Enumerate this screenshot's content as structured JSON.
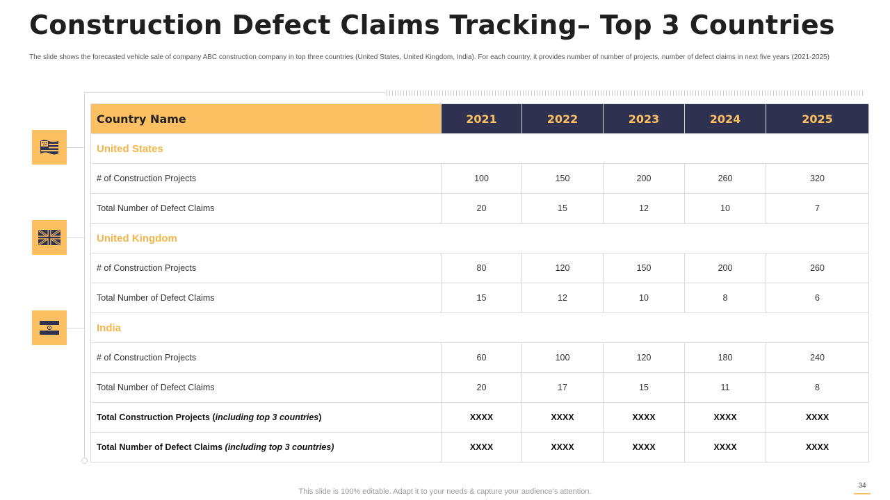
{
  "title": "Construction Defect Claims Tracking– Top 3 Countries",
  "subtitle": "The slide shows the forecasted vehicle sale of company ABC construction company in top three countries (United States, United Kingdom, India).  For each country, it provides number of number of projects, number of defect claims in next five years (2021-2025)",
  "colors": {
    "accent": "#fcc063",
    "header_dark": "#2e3150",
    "section_text": "#f3b548"
  },
  "table": {
    "country_header": "Country Name",
    "years": [
      "2021",
      "2022",
      "2023",
      "2024",
      "2025"
    ],
    "countries": [
      {
        "name": "United States",
        "flag_icon": "us-flag-icon",
        "projects_label": "# of Construction Projects",
        "projects": [
          "100",
          "150",
          "200",
          "260",
          "320"
        ],
        "claims_label": "Total Number  of Defect Claims",
        "claims": [
          "20",
          "15",
          "12",
          "10",
          "7"
        ]
      },
      {
        "name": "United Kingdom",
        "flag_icon": "uk-flag-icon",
        "projects_label": "# of Construction Projects",
        "projects": [
          "80",
          "120",
          "150",
          "200",
          "260"
        ],
        "claims_label": "Total Number  of Defect Claims",
        "claims": [
          "15",
          "12",
          "10",
          "8",
          "6"
        ]
      },
      {
        "name": "India",
        "flag_icon": "india-flag-icon",
        "projects_label": "# of Construction Projects",
        "projects": [
          "60",
          "100",
          "120",
          "180",
          "240"
        ],
        "claims_label": "Total Number  of Defect Claims",
        "claims": [
          "20",
          "17",
          "15",
          "11",
          "8"
        ]
      }
    ],
    "totals": [
      {
        "label_main": "Total Construction  Projects (",
        "label_italic": "including top 3 countries",
        "label_end": ")",
        "values": [
          "XXXX",
          "XXXX",
          "XXXX",
          "XXXX",
          "XXXX"
        ]
      },
      {
        "label_main": "Total Number of Defect Claims ",
        "label_italic": "(including top 3 countries)",
        "label_end": "",
        "values": [
          "XXXX",
          "XXXX",
          "XXXX",
          "XXXX",
          "XXXX"
        ]
      }
    ]
  },
  "footer": "This slide is 100% editable. Adapt it to your needs & capture your audience’s attention.",
  "page_number": "34"
}
